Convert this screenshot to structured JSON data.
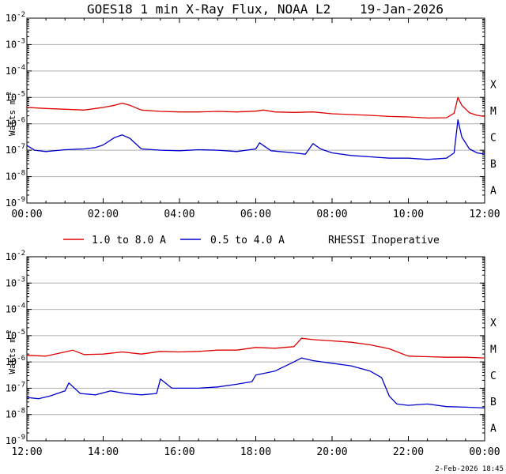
{
  "chart_data": [
    {
      "type": "line",
      "title": "GOES18 1 min X-Ray Flux, NOAA L2",
      "date": "19-Jan-2026",
      "ylabel_base": "Watts m",
      "ylabel_exp": "-2",
      "yscale": "log",
      "ylim_exp": [
        -9,
        -2
      ],
      "ytick_exponents": [
        "-9",
        "-8",
        "-7",
        "-6",
        "-5",
        "-4",
        "-3",
        "-2"
      ],
      "xlim_hours": [
        0,
        12
      ],
      "xtick_labels": [
        "00:00",
        "02:00",
        "04:00",
        "06:00",
        "08:00",
        "10:00",
        "12:00"
      ],
      "class_labels": [
        {
          "label": "A",
          "exp": -8
        },
        {
          "label": "B",
          "exp": -7
        },
        {
          "label": "C",
          "exp": -6
        },
        {
          "label": "M",
          "exp": -5
        },
        {
          "label": "X",
          "exp": -4
        }
      ],
      "series": [
        {
          "name": "1.0 to 8.0 A",
          "color": "#dd0000",
          "x_hours": [
            0,
            0.5,
            1.0,
            1.5,
            2.0,
            2.3,
            2.5,
            2.7,
            3.0,
            3.5,
            4.0,
            4.5,
            5.0,
            5.5,
            6.0,
            6.2,
            6.5,
            7.0,
            7.5,
            8.0,
            8.5,
            9.0,
            9.5,
            10.0,
            10.5,
            11.0,
            11.2,
            11.3,
            11.4,
            11.6,
            11.8,
            12.0
          ],
          "log_flux": [
            -5.38,
            -5.42,
            -5.45,
            -5.48,
            -5.38,
            -5.3,
            -5.22,
            -5.3,
            -5.48,
            -5.53,
            -5.55,
            -5.55,
            -5.53,
            -5.55,
            -5.52,
            -5.48,
            -5.55,
            -5.57,
            -5.55,
            -5.62,
            -5.65,
            -5.68,
            -5.72,
            -5.74,
            -5.78,
            -5.77,
            -5.6,
            -5.0,
            -5.3,
            -5.58,
            -5.68,
            -5.72
          ]
        },
        {
          "name": "0.5 to 4.0 A",
          "color": "#0000cc",
          "x_hours": [
            0,
            0.2,
            0.5,
            1.0,
            1.5,
            1.8,
            2.0,
            2.3,
            2.5,
            2.7,
            3.0,
            3.5,
            4.0,
            4.5,
            5.0,
            5.5,
            6.0,
            6.1,
            6.4,
            7.0,
            7.3,
            7.5,
            7.7,
            8.0,
            8.5,
            9.0,
            9.5,
            10.0,
            10.5,
            11.0,
            11.2,
            11.3,
            11.4,
            11.6,
            11.8,
            12.0
          ],
          "log_flux": [
            -6.82,
            -7.0,
            -7.05,
            -6.98,
            -6.95,
            -6.9,
            -6.8,
            -6.52,
            -6.42,
            -6.55,
            -6.95,
            -7.0,
            -7.02,
            -6.98,
            -7.0,
            -7.05,
            -6.95,
            -6.72,
            -7.02,
            -7.1,
            -7.15,
            -6.75,
            -6.95,
            -7.1,
            -7.2,
            -7.25,
            -7.3,
            -7.3,
            -7.35,
            -7.3,
            -7.1,
            -5.85,
            -6.5,
            -6.95,
            -7.1,
            -7.15
          ]
        }
      ]
    },
    {
      "type": "line",
      "ylabel_base": "Watts m",
      "ylabel_exp": "-2",
      "yscale": "log",
      "ylim_exp": [
        -9,
        -2
      ],
      "ytick_exponents": [
        "-9",
        "-8",
        "-7",
        "-6",
        "-5",
        "-4",
        "-3",
        "-2"
      ],
      "xlim_hours": [
        12,
        24
      ],
      "xtick_labels": [
        "12:00",
        "14:00",
        "16:00",
        "18:00",
        "20:00",
        "22:00",
        "00:00"
      ],
      "class_labels": [
        {
          "label": "A",
          "exp": -8
        },
        {
          "label": "B",
          "exp": -7
        },
        {
          "label": "C",
          "exp": -6
        },
        {
          "label": "M",
          "exp": -5
        },
        {
          "label": "X",
          "exp": -4
        }
      ],
      "series": [
        {
          "name": "1.0 to 8.0 A",
          "color": "#dd0000",
          "x_hours": [
            12,
            12.5,
            13.0,
            13.2,
            13.5,
            14.0,
            14.5,
            15.0,
            15.5,
            16.0,
            16.5,
            17.0,
            17.5,
            18.0,
            18.5,
            19.0,
            19.2,
            19.5,
            20.0,
            20.5,
            21.0,
            21.5,
            22.0,
            22.5,
            23.0,
            23.5,
            24.0
          ],
          "log_flux": [
            -5.75,
            -5.78,
            -5.62,
            -5.55,
            -5.72,
            -5.7,
            -5.62,
            -5.7,
            -5.6,
            -5.62,
            -5.6,
            -5.55,
            -5.55,
            -5.45,
            -5.48,
            -5.42,
            -5.1,
            -5.15,
            -5.2,
            -5.25,
            -5.35,
            -5.5,
            -5.78,
            -5.8,
            -5.82,
            -5.82,
            -5.85
          ]
        },
        {
          "name": "0.5 to 4.0 A",
          "color": "#0000cc",
          "x_hours": [
            12,
            12.3,
            12.6,
            13.0,
            13.1,
            13.4,
            13.8,
            14.2,
            14.6,
            15.0,
            15.4,
            15.5,
            15.8,
            16.5,
            17.0,
            17.5,
            17.9,
            18.0,
            18.5,
            19.0,
            19.2,
            19.5,
            20.0,
            20.5,
            21.0,
            21.3,
            21.5,
            21.7,
            22.0,
            22.5,
            23.0,
            23.5,
            24.0
          ],
          "log_flux": [
            -7.35,
            -7.4,
            -7.3,
            -7.1,
            -6.8,
            -7.2,
            -7.25,
            -7.1,
            -7.2,
            -7.25,
            -7.2,
            -6.65,
            -7.0,
            -7.0,
            -6.95,
            -6.85,
            -6.75,
            -6.5,
            -6.35,
            -6.0,
            -5.85,
            -5.95,
            -6.05,
            -6.15,
            -6.35,
            -6.6,
            -7.3,
            -7.6,
            -7.65,
            -7.6,
            -7.7,
            -7.72,
            -7.75
          ]
        }
      ]
    }
  ],
  "legend": {
    "series1_label": "1.0 to 8.0 A",
    "series2_label": "0.5 to 4.0 A",
    "note": "RHESSI Inoperative"
  },
  "footer": {
    "timestamp": "2-Feb-2026 18:45"
  }
}
